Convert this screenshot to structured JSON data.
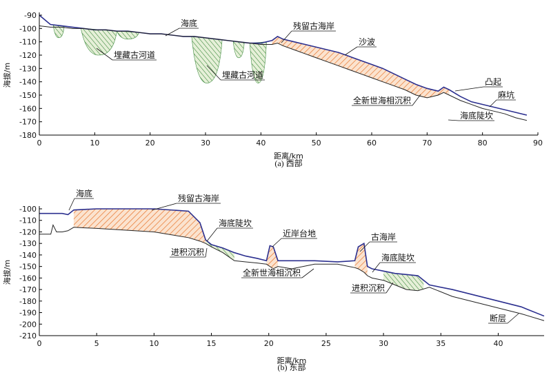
{
  "chart_data": [
    {
      "type": "line",
      "caption": "(a) 西部",
      "xlabel": "距离/km",
      "ylabel": "海拔/m",
      "xlim": [
        0,
        90
      ],
      "ylim": [
        -180,
        -90
      ],
      "xticks": [
        0,
        10,
        20,
        30,
        40,
        50,
        60,
        70,
        80,
        90
      ],
      "yticks": [
        -90,
        -100,
        -110,
        -120,
        -130,
        -140,
        -150,
        -160,
        -170,
        -180
      ],
      "x": [
        0,
        2,
        4,
        6,
        8,
        10,
        12,
        14,
        16,
        18,
        20,
        22,
        24,
        26,
        28,
        30,
        32,
        34,
        36,
        38,
        40,
        42,
        43,
        44,
        46,
        48,
        50,
        52,
        54,
        56,
        58,
        60,
        62,
        64,
        66,
        68,
        70,
        72,
        73,
        74,
        76,
        78,
        80,
        82,
        84,
        86,
        88
      ],
      "series": [
        {
          "color": "#2b2f8f",
          "values": [
            -90,
            -97,
            -98,
            -99,
            -100,
            -101,
            -101,
            -102,
            -102,
            -103,
            -104,
            -104,
            -105,
            -106,
            -106,
            -107,
            -108,
            -109,
            -110,
            -111,
            -111,
            -109,
            -106,
            -108,
            -110,
            -112,
            -114,
            -116,
            -118,
            -121,
            -124,
            -127,
            -130,
            -134,
            -138,
            -142,
            -145,
            -147,
            -144,
            -146,
            -151,
            -155,
            -157,
            -159,
            -161,
            -163,
            -165
          ]
        },
        {
          "color": "#222222",
          "values": [
            -98,
            -99,
            -99,
            -100,
            -100,
            -101,
            -101,
            -102,
            -102,
            -103,
            -104,
            -104,
            -105,
            -106,
            -106,
            -107,
            -108,
            -109,
            -110,
            -111,
            -112,
            -112,
            -111,
            -113,
            -116,
            -119,
            -122,
            -125,
            -128,
            -131,
            -134,
            -137,
            -140,
            -143,
            -146,
            -150,
            -152,
            -150,
            -148,
            -150,
            -154,
            -157,
            -160,
            -162,
            -164,
            -167,
            -169
          ]
        }
      ],
      "annotations": [
        "海底",
        "残留古海岸",
        "沙波",
        "埋藏古河道",
        "埋藏古河道",
        "凸起",
        "全新世海相沉积",
        "麻坑",
        "海底陡坎"
      ]
    },
    {
      "type": "line",
      "caption": "(b) 东部",
      "xlabel": "距离/km",
      "ylabel": "海拔/m",
      "xlim": [
        0,
        44
      ],
      "ylim": [
        -210,
        -100
      ],
      "xticks": [
        0,
        5,
        10,
        15,
        20,
        25,
        30,
        35,
        40
      ],
      "yticks": [
        -100,
        -110,
        -120,
        -130,
        -140,
        -150,
        -160,
        -170,
        -180,
        -190,
        -200,
        -210
      ],
      "x": [
        0,
        1,
        1.2,
        1.5,
        2,
        2.5,
        3,
        5,
        10,
        13,
        14,
        14.5,
        15,
        16,
        17,
        18,
        19,
        19.8,
        20.1,
        20.4,
        20.8,
        22,
        24,
        26,
        27.5,
        27.8,
        28.3,
        28.6,
        29,
        30,
        31,
        32,
        33,
        34,
        36,
        38,
        40,
        42,
        44
      ],
      "series": [
        {
          "color": "#2b2f8f",
          "values": [
            -104,
            -104,
            -104,
            -104,
            -104,
            -105,
            -101,
            -100,
            -100,
            -102,
            -112,
            -127,
            -131,
            -134,
            -138,
            -141,
            -143,
            -145,
            -132,
            -133,
            -145,
            -145,
            -145,
            -146,
            -145,
            -133,
            -130,
            -150,
            -152,
            -154,
            -156,
            -157,
            -158,
            -166,
            -170,
            -175,
            -180,
            -185,
            -193
          ]
        },
        {
          "color": "#222222",
          "values": [
            -122,
            -122,
            -114,
            -120,
            -120,
            -119,
            -116,
            -117,
            -120,
            -125,
            -128,
            -130,
            -133,
            -138,
            -145,
            -146,
            -147,
            -148,
            -150,
            -152,
            -150,
            -152,
            -148,
            -148,
            -151,
            -152,
            -155,
            -158,
            -160,
            -162,
            -166,
            -170,
            -171,
            -168,
            -176,
            -181,
            -186,
            -191,
            -197
          ]
        }
      ],
      "annotations": [
        "海底",
        "残留古海岸",
        "海底陡坎",
        "近岸台地",
        "古海岸",
        "进积沉积",
        "全新世海相沉积",
        "海底陡坎",
        "进积沉积",
        "断层"
      ]
    }
  ]
}
